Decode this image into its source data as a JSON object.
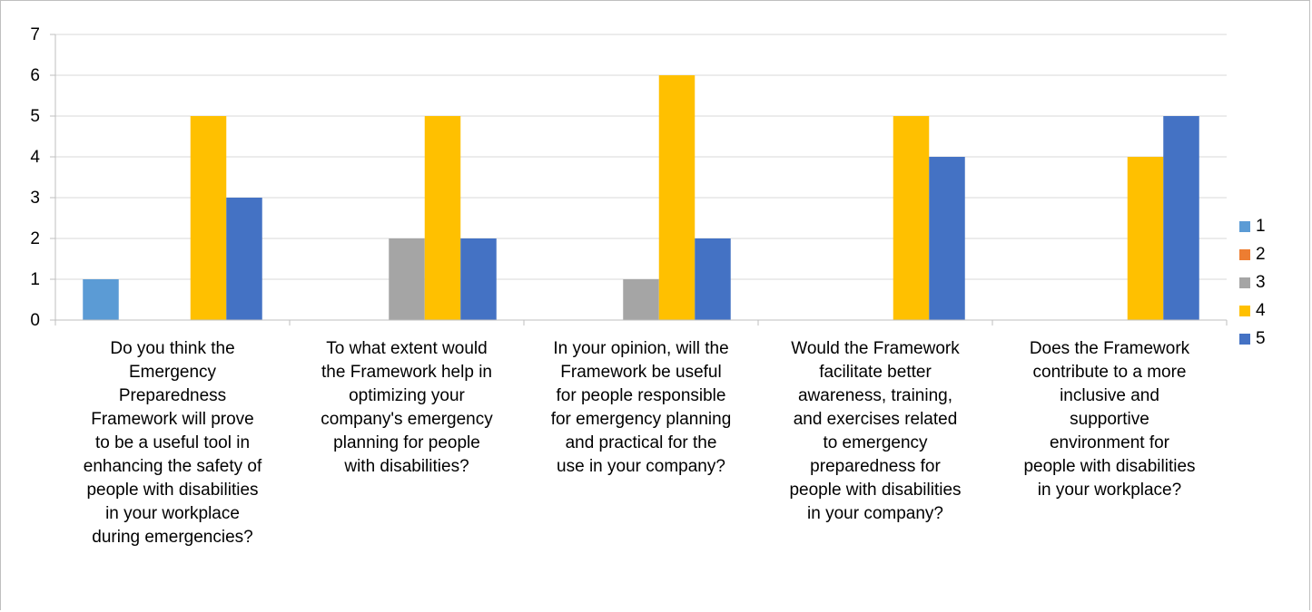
{
  "chart_data": {
    "type": "bar",
    "title": "",
    "xlabel": "",
    "ylabel": "",
    "ylim": [
      0,
      7
    ],
    "yticks": [
      "0",
      "1",
      "2",
      "3",
      "4",
      "5",
      "6",
      "7"
    ],
    "grid": true,
    "legend_position": "right",
    "categories": [
      "Do you think the Emergency Preparedness Framework will prove to be a useful tool in enhancing the safety of people with disabilities in your workplace during emergencies?",
      "To what extent would the Framework help in optimizing your company's emergency planning for people with disabilities?",
      "In your opinion, will the Framework be useful for people responsible for emergency planning and practical for the use in your company?",
      "Would the Framework facilitate better awareness, training, and exercises related to emergency preparedness for people with disabilities in your company?",
      "Does the Framework contribute to a more inclusive and supportive environment for people with disabilities in your workplace?"
    ],
    "category_lines": [
      [
        "Do you think the",
        "Emergency",
        "Preparedness",
        "Framework will prove",
        "to be a useful tool in",
        "enhancing the safety of",
        "people with disabilities",
        "in your workplace",
        "during emergencies?"
      ],
      [
        "To what extent would",
        "the Framework help in",
        "optimizing your",
        "company's emergency",
        "planning for people",
        "with disabilities?"
      ],
      [
        "In your opinion, will the",
        "Framework be useful",
        "for people responsible",
        "for emergency planning",
        "and practical for the",
        "use in your company?"
      ],
      [
        "Would the Framework",
        "facilitate better",
        "awareness, training,",
        "and exercises related",
        "to emergency",
        "preparedness for",
        "people with disabilities",
        "in your company?"
      ],
      [
        "Does the Framework",
        "contribute to a more",
        "inclusive and",
        "supportive",
        "environment for",
        "people with disabilities",
        "in your workplace?"
      ]
    ],
    "series": [
      {
        "name": "1",
        "color": "#5b9bd5",
        "values": [
          1,
          0,
          0,
          0,
          0
        ]
      },
      {
        "name": "2",
        "color": "#ed7d31",
        "values": [
          0,
          0,
          0,
          0,
          0
        ]
      },
      {
        "name": "3",
        "color": "#a5a5a5",
        "values": [
          0,
          2,
          1,
          0,
          0
        ]
      },
      {
        "name": "4",
        "color": "#ffc000",
        "values": [
          5,
          5,
          6,
          5,
          4
        ]
      },
      {
        "name": "5",
        "color": "#4472c4",
        "values": [
          3,
          2,
          2,
          4,
          5
        ]
      }
    ]
  }
}
